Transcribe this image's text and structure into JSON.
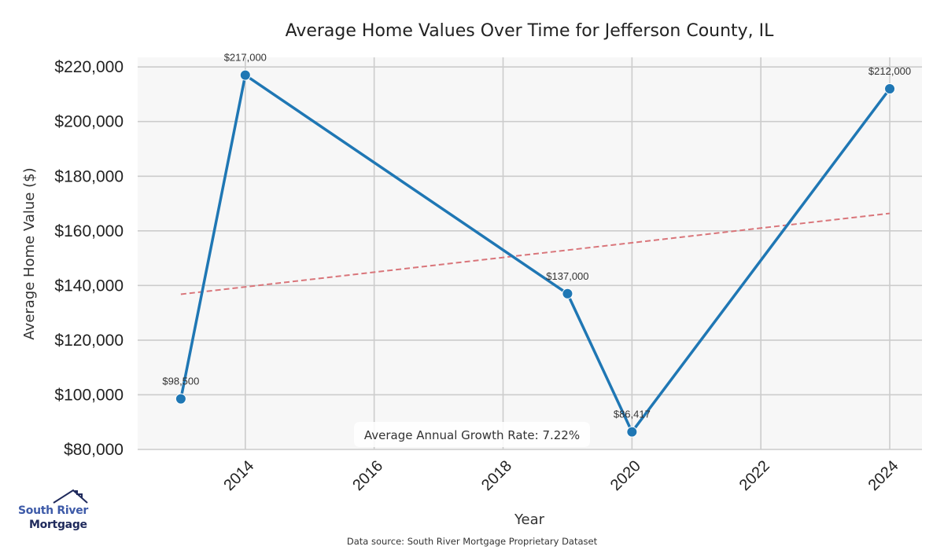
{
  "chart_data": {
    "type": "line",
    "title": "Average Home Values Over Time for Jefferson County, IL",
    "xlabel": "Year",
    "ylabel": "Average Home Value ($)",
    "x": [
      2013,
      2014,
      2019,
      2020,
      2024
    ],
    "series": [
      {
        "name": "Average Home Value",
        "values": [
          98500,
          217000,
          137000,
          86417,
          212000
        ],
        "labels": [
          "$98,500",
          "$217,000",
          "$137,000",
          "$86,417",
          "$212,000"
        ],
        "color": "#1f77b4"
      }
    ],
    "trendline": {
      "name": "Trend",
      "x": [
        2013,
        2024
      ],
      "values": [
        136800,
        166400
      ],
      "color": "#d9757a",
      "style": "dashed"
    },
    "xticks": [
      2014,
      2016,
      2018,
      2020,
      2022,
      2024
    ],
    "yticks": [
      80000,
      100000,
      120000,
      140000,
      160000,
      180000,
      200000,
      220000
    ],
    "ytick_labels": [
      "$80,000",
      "$100,000",
      "$120,000",
      "$140,000",
      "$160,000",
      "$180,000",
      "$200,000",
      "$220,000"
    ],
    "xlim": [
      2012.33,
      2024.5
    ],
    "ylim": [
      80000,
      223500
    ],
    "grid": true,
    "annotation": "Average Annual Growth Rate: 7.22%",
    "source": "Data source: South River Mortgage Proprietary Dataset"
  },
  "logo": {
    "line1": "South River",
    "line2": "Mortgage",
    "colors": {
      "primary": "#3d5aa8",
      "dark": "#1f2a5c"
    }
  },
  "colors": {
    "plot_bg": "#f7f7f7",
    "grid": "#cccccc"
  }
}
